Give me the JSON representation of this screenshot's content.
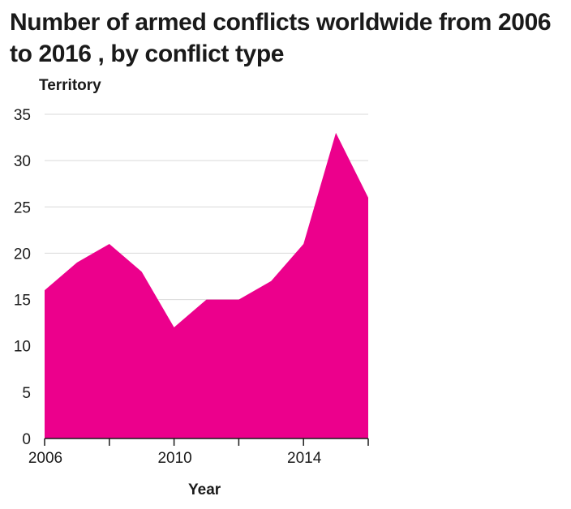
{
  "chart_data": {
    "type": "area",
    "title": "Number of armed conflicts worldwide from 2006 to 2016 , by conflict type",
    "ylabel": "Territory",
    "xlabel": "Year",
    "x": [
      2006,
      2007,
      2008,
      2009,
      2010,
      2011,
      2012,
      2013,
      2014,
      2015,
      2016
    ],
    "series": [
      {
        "values": [
          16,
          19,
          21,
          18,
          12,
          15,
          15,
          17,
          21,
          33,
          26
        ],
        "color": "#ec008c"
      }
    ],
    "xlim": [
      2006,
      2016
    ],
    "ylim": [
      0,
      35
    ],
    "yticks": [
      0,
      5,
      10,
      15,
      20,
      25,
      30,
      35
    ],
    "xticks": [
      2006,
      2008,
      2010,
      2012,
      2014,
      2016
    ],
    "xtick_labels": [
      "2006",
      "",
      "2010",
      "",
      "2014",
      ""
    ],
    "grid": "horizontal",
    "legend": "none"
  }
}
